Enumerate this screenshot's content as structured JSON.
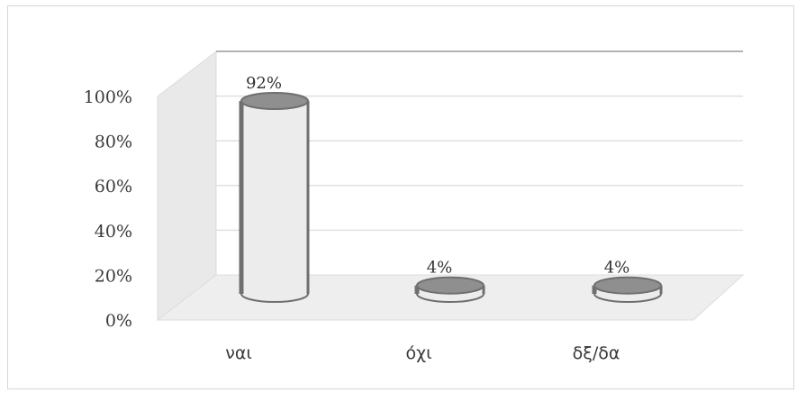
{
  "chart_data": {
    "type": "bar",
    "categories": [
      "ναι",
      "όχι",
      "δξ/δα"
    ],
    "values": [
      92,
      4,
      4
    ],
    "data_labels": [
      "92%",
      "4%",
      "4%"
    ],
    "y_tick_labels": [
      "0%",
      "20%",
      "40%",
      "60%",
      "80%",
      "100%"
    ],
    "ylim": [
      0,
      100
    ],
    "grid": true,
    "style": "3d-cylinder",
    "colors": {
      "bar_body": "#ececec",
      "bar_edge": "#6f6f6f",
      "bar_cap": "#8f8f8f",
      "wall": "#e9e9e9",
      "floor": "#eeeeee",
      "grid": "#e0e0e0"
    }
  }
}
